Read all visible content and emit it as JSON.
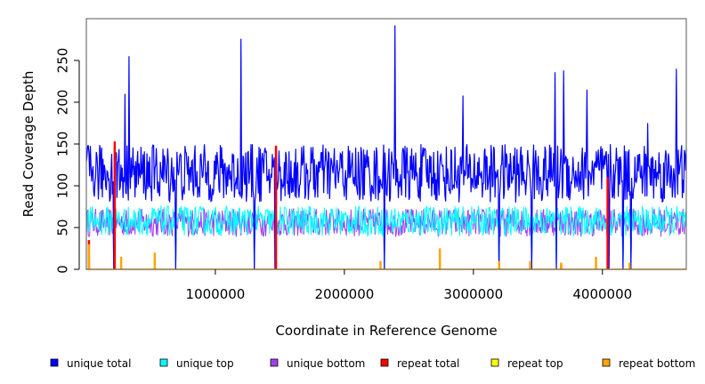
{
  "chart_data": {
    "type": "line",
    "xlabel": "Coordinate in Reference Genome",
    "ylabel": "Read Coverage Depth",
    "xlim": [
      0,
      4650000
    ],
    "ylim": [
      0,
      300
    ],
    "x_ticks": [
      {
        "value": 1000000,
        "label": "1000000"
      },
      {
        "value": 2000000,
        "label": "2000000"
      },
      {
        "value": 3000000,
        "label": "3000000"
      },
      {
        "value": 4000000,
        "label": "4000000"
      }
    ],
    "y_ticks": [
      {
        "value": 0,
        "label": "0"
      },
      {
        "value": 50,
        "label": "50"
      },
      {
        "value": 100,
        "label": "100"
      },
      {
        "value": 150,
        "label": "150"
      },
      {
        "value": 200,
        "label": "200"
      },
      {
        "value": 250,
        "label": "250"
      }
    ],
    "grid": false,
    "legend_position": "bottom",
    "series": [
      {
        "name": "unique total",
        "color": "#0000ff",
        "base_level": 115,
        "peaks": [
          {
            "x": 230000,
            "y": 140
          },
          {
            "x": 330000,
            "y": 255
          },
          {
            "x": 300000,
            "y": 210
          },
          {
            "x": 1200000,
            "y": 276
          },
          {
            "x": 2390000,
            "y": 292
          },
          {
            "x": 2920000,
            "y": 208
          },
          {
            "x": 3630000,
            "y": 236
          },
          {
            "x": 3700000,
            "y": 238
          },
          {
            "x": 3880000,
            "y": 215
          },
          {
            "x": 4570000,
            "y": 240
          },
          {
            "x": 4350000,
            "y": 175
          }
        ],
        "dips": [
          {
            "x": 210000,
            "y": 0
          },
          {
            "x": 690000,
            "y": 0
          },
          {
            "x": 1300000,
            "y": 0
          },
          {
            "x": 1460000,
            "y": 0
          },
          {
            "x": 3200000,
            "y": 0
          },
          {
            "x": 3450000,
            "y": 0
          },
          {
            "x": 3640000,
            "y": 0
          },
          {
            "x": 4050000,
            "y": 0
          },
          {
            "x": 4160000,
            "y": 0
          },
          {
            "x": 4220000,
            "y": 0
          },
          {
            "x": 2310000,
            "y": 0
          }
        ]
      },
      {
        "name": "unique top",
        "color": "#00ffff",
        "base_level": 58
      },
      {
        "name": "unique bottom",
        "color": "#a040f0",
        "base_level": 56
      },
      {
        "name": "repeat total",
        "color": "#ff0000",
        "spikes": [
          {
            "x": 220000,
            "y": 153
          },
          {
            "x": 1470000,
            "y": 148
          },
          {
            "x": 20000,
            "y": 35
          },
          {
            "x": 3680000,
            "y": 5
          },
          {
            "x": 4040000,
            "y": 110
          }
        ]
      },
      {
        "name": "repeat top",
        "color": "#ffff00",
        "spikes": []
      },
      {
        "name": "repeat bottom",
        "color": "#ffa500",
        "spikes": [
          {
            "x": 20000,
            "y": 30
          },
          {
            "x": 270000,
            "y": 15
          },
          {
            "x": 530000,
            "y": 20
          },
          {
            "x": 2280000,
            "y": 10
          },
          {
            "x": 2740000,
            "y": 25
          },
          {
            "x": 3200000,
            "y": 10
          },
          {
            "x": 3440000,
            "y": 10
          },
          {
            "x": 3680000,
            "y": 8
          },
          {
            "x": 3950000,
            "y": 15
          },
          {
            "x": 4210000,
            "y": 8
          }
        ]
      }
    ]
  }
}
